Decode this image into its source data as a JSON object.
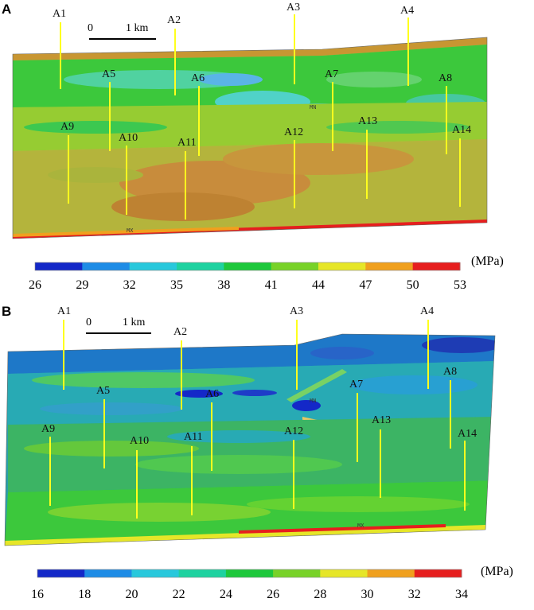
{
  "panels": [
    {
      "letter": "A",
      "scale": {
        "zero": "0",
        "length": "1 km"
      },
      "wells": [
        "A1",
        "A2",
        "A3",
        "A4",
        "A5",
        "A6",
        "A7",
        "A8",
        "A9",
        "A10",
        "A11",
        "A12",
        "A13",
        "A14"
      ],
      "markers": {
        "min": "MN",
        "max": "MX"
      },
      "colorbar": {
        "unit": "(MPa)",
        "ticks": [
          "26",
          "29",
          "32",
          "35",
          "38",
          "41",
          "44",
          "47",
          "50",
          "53"
        ],
        "colors": [
          "#1428c8",
          "#1e8ce6",
          "#28c8dc",
          "#1ed2a0",
          "#1ec83c",
          "#78d228",
          "#e6e628",
          "#f0a01e",
          "#e61e1e"
        ]
      }
    },
    {
      "letter": "B",
      "scale": {
        "zero": "0",
        "length": "1 km"
      },
      "wells": [
        "A1",
        "A2",
        "A3",
        "A4",
        "A5",
        "A6",
        "A7",
        "A8",
        "A9",
        "A10",
        "A11",
        "A12",
        "A13",
        "A14"
      ],
      "markers": {
        "min": "MN",
        "max": "MX"
      },
      "colorbar": {
        "unit": "(MPa)",
        "ticks": [
          "16",
          "18",
          "20",
          "22",
          "24",
          "26",
          "28",
          "30",
          "32",
          "34"
        ],
        "colors": [
          "#1428c8",
          "#1e8ce6",
          "#28c8dc",
          "#1ed2a0",
          "#1ec83c",
          "#78d228",
          "#e6e628",
          "#f0a01e",
          "#e61e1e"
        ]
      }
    }
  ]
}
